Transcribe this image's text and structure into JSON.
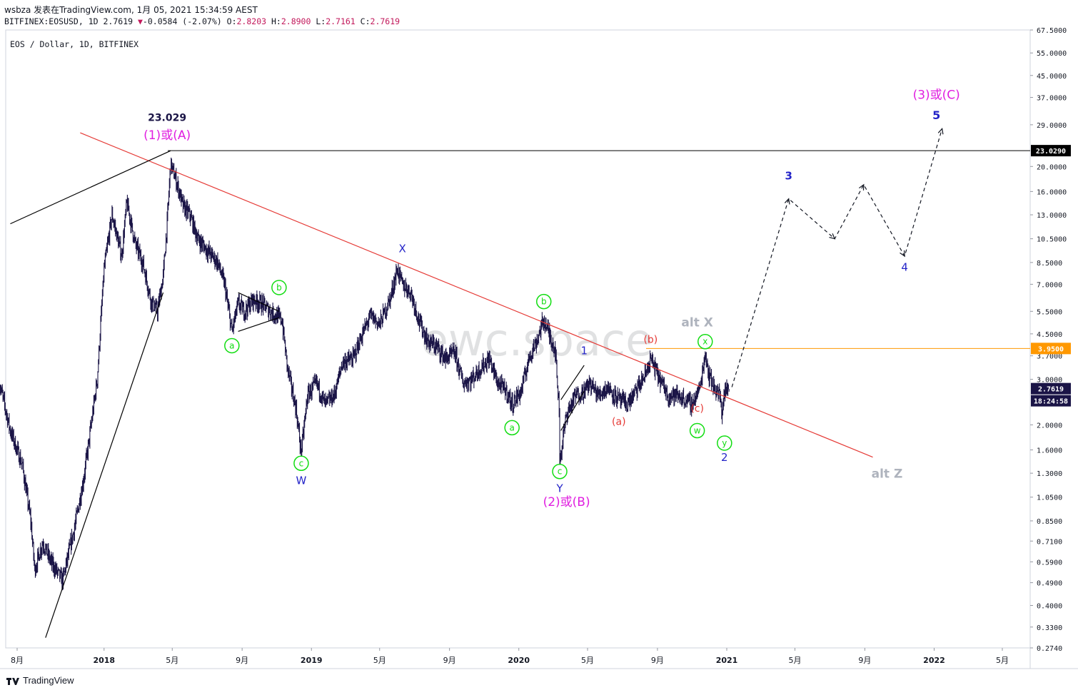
{
  "header": {
    "line1": "wsbza 发表在TradingView.com, 1月 05, 2021 15:34:59 AEST",
    "symbol": "BITFINEX:EOSUSD, 1D",
    "last": "2.7619",
    "change": "-0.0584 (-2.07%)",
    "ohlc": {
      "O": "2.8203",
      "H": "2.8900",
      "L": "2.7161",
      "C": "2.7619"
    }
  },
  "legend": "EOS / Dollar, 1D, BITFINEX",
  "watermark": "ewc.space",
  "footer": {
    "brand": "TradingView"
  },
  "colors": {
    "candles": "#1a1446",
    "trendline_red": "#e53935",
    "level_black": "#000000",
    "level_orange": "#ff9800",
    "wave_blue": "#2424c8",
    "wave_magenta": "#e01ee0",
    "wave_green": "#11dd11",
    "wave_red": "#e53935",
    "alt_gray": "#aeb3bd"
  },
  "chart_data": {
    "type": "candlestick",
    "title": "EOS / Dollar, 1D, BITFINEX",
    "y_scale": "log",
    "ylim": [
      0.274,
      67.5
    ],
    "y_ticks": [
      {
        "v": 67.5,
        "label": "67.5000"
      },
      {
        "v": 55,
        "label": "55.0000"
      },
      {
        "v": 45,
        "label": "45.0000"
      },
      {
        "v": 37,
        "label": "37.0000"
      },
      {
        "v": 29,
        "label": "29.0000"
      },
      {
        "v": 20,
        "label": "20.0000"
      },
      {
        "v": 16,
        "label": "16.0000"
      },
      {
        "v": 13,
        "label": "13.0000"
      },
      {
        "v": 10.5,
        "label": "10.5000"
      },
      {
        "v": 8.5,
        "label": "8.5000"
      },
      {
        "v": 7,
        "label": "7.0000"
      },
      {
        "v": 5.5,
        "label": "5.5000"
      },
      {
        "v": 4.5,
        "label": "4.5000"
      },
      {
        "v": 3.7,
        "label": "3.7000"
      },
      {
        "v": 3.0,
        "label": "3.0000"
      },
      {
        "v": 2,
        "label": "2.0000"
      },
      {
        "v": 1.6,
        "label": "1.6000"
      },
      {
        "v": 1.3,
        "label": "1.3000"
      },
      {
        "v": 1.05,
        "label": "1.0500"
      },
      {
        "v": 0.85,
        "label": "0.8500"
      },
      {
        "v": 0.71,
        "label": "0.7100"
      },
      {
        "v": 0.59,
        "label": "0.5900"
      },
      {
        "v": 0.49,
        "label": "0.4900"
      },
      {
        "v": 0.4,
        "label": "0.4000"
      },
      {
        "v": 0.33,
        "label": "0.3300"
      },
      {
        "v": 0.274,
        "label": "0.2740"
      }
    ],
    "x_ticks": [
      {
        "t": "2017-08-01",
        "label": "8月"
      },
      {
        "t": "2018-01-01",
        "label": "2018"
      },
      {
        "t": "2018-05-01",
        "label": "5月"
      },
      {
        "t": "2018-09-01",
        "label": "9月"
      },
      {
        "t": "2019-01-01",
        "label": "2019"
      },
      {
        "t": "2019-05-01",
        "label": "5月"
      },
      {
        "t": "2019-09-01",
        "label": "9月"
      },
      {
        "t": "2020-01-01",
        "label": "2020"
      },
      {
        "t": "2020-05-01",
        "label": "5月"
      },
      {
        "t": "2020-09-01",
        "label": "9月"
      },
      {
        "t": "2021-01-01",
        "label": "2021"
      },
      {
        "t": "2021-05-01",
        "label": "5月"
      },
      {
        "t": "2021-09-01",
        "label": "9月"
      },
      {
        "t": "2022-01-01",
        "label": "2022"
      },
      {
        "t": "2022-05-01",
        "label": "5月"
      }
    ],
    "price_path": [
      [
        "2017-07-01",
        2.9
      ],
      [
        "2017-07-20",
        1.9
      ],
      [
        "2017-08-10",
        1.4
      ],
      [
        "2017-08-25",
        0.85
      ],
      [
        "2017-09-01",
        0.55
      ],
      [
        "2017-09-15",
        0.7
      ],
      [
        "2017-10-01",
        0.58
      ],
      [
        "2017-10-20",
        0.5
      ],
      [
        "2017-11-10",
        0.8
      ],
      [
        "2017-11-25",
        1.2
      ],
      [
        "2017-12-05",
        1.7
      ],
      [
        "2017-12-20",
        3.0
      ],
      [
        "2018-01-01",
        8.0
      ],
      [
        "2018-01-15",
        13.0
      ],
      [
        "2018-02-01",
        9.0
      ],
      [
        "2018-02-10",
        14.5
      ],
      [
        "2018-02-25",
        10.0
      ],
      [
        "2018-03-10",
        8.5
      ],
      [
        "2018-03-25",
        6.0
      ],
      [
        "2018-04-05",
        5.5
      ],
      [
        "2018-04-15",
        7.5
      ],
      [
        "2018-04-22",
        12.0
      ],
      [
        "2018-04-28",
        20.5
      ],
      [
        "2018-05-10",
        17.0
      ],
      [
        "2018-05-20",
        14.0
      ],
      [
        "2018-06-01",
        13.0
      ],
      [
        "2018-06-15",
        10.5
      ],
      [
        "2018-07-01",
        9.5
      ],
      [
        "2018-07-20",
        8.5
      ],
      [
        "2018-08-01",
        7.0
      ],
      [
        "2018-08-14",
        4.6
      ],
      [
        "2018-08-25",
        5.9
      ],
      [
        "2018-09-05",
        5.5
      ],
      [
        "2018-09-20",
        6.1
      ],
      [
        "2018-10-05",
        5.9
      ],
      [
        "2018-10-25",
        5.4
      ],
      [
        "2018-11-10",
        5.1
      ],
      [
        "2018-11-20",
        3.3
      ],
      [
        "2018-12-05",
        2.3
      ],
      [
        "2018-12-14",
        1.55
      ],
      [
        "2018-12-25",
        2.6
      ],
      [
        "2019-01-10",
        2.9
      ],
      [
        "2019-01-25",
        2.4
      ],
      [
        "2019-02-10",
        2.6
      ],
      [
        "2019-02-25",
        3.5
      ],
      [
        "2019-03-15",
        3.6
      ],
      [
        "2019-04-01",
        4.5
      ],
      [
        "2019-04-15",
        5.3
      ],
      [
        "2019-05-01",
        4.9
      ],
      [
        "2019-05-20",
        6.2
      ],
      [
        "2019-06-01",
        8.0
      ],
      [
        "2019-06-10",
        7.0
      ],
      [
        "2019-06-25",
        6.5
      ],
      [
        "2019-07-10",
        5.0
      ],
      [
        "2019-07-25",
        4.2
      ],
      [
        "2019-08-10",
        4.0
      ],
      [
        "2019-08-25",
        3.6
      ],
      [
        "2019-09-10",
        3.8
      ],
      [
        "2019-09-25",
        2.9
      ],
      [
        "2019-10-10",
        3.0
      ],
      [
        "2019-10-25",
        3.3
      ],
      [
        "2019-11-10",
        3.6
      ],
      [
        "2019-11-25",
        2.9
      ],
      [
        "2019-12-10",
        2.7
      ],
      [
        "2019-12-20",
        2.4
      ],
      [
        "2020-01-05",
        2.7
      ],
      [
        "2020-01-20",
        3.7
      ],
      [
        "2020-02-01",
        4.2
      ],
      [
        "2020-02-14",
        5.1
      ],
      [
        "2020-02-25",
        4.4
      ],
      [
        "2020-03-05",
        3.9
      ],
      [
        "2020-03-12",
        2.3
      ],
      [
        "2020-03-13",
        1.45
      ],
      [
        "2020-03-25",
        2.2
      ],
      [
        "2020-04-10",
        2.6
      ],
      [
        "2020-04-25",
        2.7
      ],
      [
        "2020-05-05",
        2.9
      ],
      [
        "2020-05-20",
        2.6
      ],
      [
        "2020-06-05",
        2.8
      ],
      [
        "2020-06-25",
        2.5
      ],
      [
        "2020-07-10",
        2.4
      ],
      [
        "2020-07-25",
        2.7
      ],
      [
        "2020-08-10",
        3.1
      ],
      [
        "2020-08-20",
        3.6
      ],
      [
        "2020-09-05",
        3.0
      ],
      [
        "2020-09-20",
        2.6
      ],
      [
        "2020-10-05",
        2.6
      ],
      [
        "2020-10-20",
        2.5
      ],
      [
        "2020-11-01",
        2.4
      ],
      [
        "2020-11-15",
        2.8
      ],
      [
        "2020-11-24",
        3.8
      ],
      [
        "2020-12-01",
        3.1
      ],
      [
        "2020-12-10",
        2.8
      ],
      [
        "2020-12-20",
        2.6
      ],
      [
        "2020-12-23",
        2.2
      ],
      [
        "2020-12-28",
        2.7
      ],
      [
        "2021-01-05",
        2.76
      ]
    ],
    "last_price": 2.7619,
    "levels": [
      {
        "price": 23.029,
        "label": "23.0290",
        "color": "#000000"
      },
      {
        "price": 3.95,
        "label": "3.9500",
        "color": "#ff9800"
      }
    ],
    "price_tags": [
      {
        "price": 2.7619,
        "label": "2.7619"
      },
      {
        "label": "18:24:58"
      }
    ],
    "trendlines": [
      {
        "name": "red-resistance-line",
        "color": "#e53935",
        "points": [
          [
            "2017-11-20",
            27.0
          ],
          [
            "2021-09-15",
            1.5
          ]
        ]
      },
      {
        "name": "black-upper-channel",
        "color": "#000000",
        "points": [
          [
            "2017-07-20",
            12.0
          ],
          [
            "2018-04-28",
            23.0
          ]
        ]
      },
      {
        "name": "black-lower-channel",
        "color": "#000000",
        "points": [
          [
            "2017-09-20",
            0.3
          ],
          [
            "2018-04-15",
            6.5
          ]
        ]
      },
      {
        "name": "triangle-upper",
        "color": "#000000",
        "points": [
          [
            "2018-08-25",
            6.5
          ],
          [
            "2018-11-05",
            5.5
          ]
        ]
      },
      {
        "name": "triangle-lower",
        "color": "#000000",
        "points": [
          [
            "2018-08-25",
            4.6
          ],
          [
            "2018-11-05",
            5.2
          ]
        ]
      },
      {
        "name": "diagonal-upper",
        "color": "#000000",
        "points": [
          [
            "2020-03-15",
            2.5
          ],
          [
            "2020-04-25",
            3.4
          ]
        ]
      },
      {
        "name": "diagonal-lower",
        "color": "#000000",
        "points": [
          [
            "2020-03-15",
            1.9
          ],
          [
            "2020-04-25",
            2.7
          ]
        ]
      }
    ],
    "projection": [
      [
        "2021-01-10",
        2.8
      ],
      [
        "2021-04-20",
        15.0
      ],
      [
        "2021-07-10",
        10.5
      ],
      [
        "2021-08-30",
        17.0
      ],
      [
        "2021-11-10",
        9.0
      ],
      [
        "2022-01-15",
        28.0
      ]
    ],
    "annotations": [
      {
        "text": "23.029",
        "t": "2018-04-22",
        "price": 30.0,
        "color": "#1a1446",
        "size": 14,
        "bold": true
      },
      {
        "text": "(1)或(A)",
        "t": "2018-04-22",
        "price": 25.5,
        "color": "#e01ee0",
        "size": 17
      },
      {
        "text": "(2)或(B)",
        "t": "2020-03-25",
        "price": 0.97,
        "color": "#e01ee0",
        "size": 17
      },
      {
        "text": "(3)或(C)",
        "t": "2022-01-05",
        "price": 36.5,
        "color": "#e01ee0",
        "size": 17
      },
      {
        "text": "X",
        "t": "2019-06-10",
        "price": 9.3,
        "color": "#2424c8",
        "size": 15
      },
      {
        "text": "W",
        "t": "2018-12-14",
        "price": 1.18,
        "color": "#2424c8",
        "size": 15
      },
      {
        "text": "Y",
        "t": "2020-03-13",
        "price": 1.1,
        "color": "#2424c8",
        "size": 15
      },
      {
        "text": "1",
        "t": "2020-04-25",
        "price": 3.75,
        "color": "#2424c8",
        "size": 15
      },
      {
        "text": "2",
        "t": "2020-12-28",
        "price": 1.45,
        "color": "#2424c8",
        "size": 15
      },
      {
        "text": "3",
        "t": "2021-04-20",
        "price": 17.8,
        "color": "#2424c8",
        "size": 15,
        "bold": true
      },
      {
        "text": "4",
        "t": "2021-11-10",
        "price": 7.9,
        "color": "#2424c8",
        "size": 15
      },
      {
        "text": "5",
        "t": "2022-01-05",
        "price": 30.5,
        "color": "#2424c8",
        "size": 16,
        "bold": true
      },
      {
        "text": "(a)",
        "t": "2020-06-25",
        "price": 2.0,
        "color": "#e53935",
        "size": 14
      },
      {
        "text": "(b)",
        "t": "2020-08-20",
        "price": 4.15,
        "color": "#e53935",
        "size": 14
      },
      {
        "text": "(c)",
        "t": "2020-11-10",
        "price": 2.25,
        "color": "#e53935",
        "size": 14
      },
      {
        "text": "alt X",
        "t": "2020-11-10",
        "price": 4.8,
        "color": "#aeb3bd",
        "size": 17,
        "bold": true
      },
      {
        "text": "alt Z",
        "t": "2021-10-10",
        "price": 1.25,
        "color": "#aeb3bd",
        "size": 17,
        "bold": true
      }
    ],
    "circled": [
      {
        "text": "a",
        "t": "2018-08-14",
        "price": 4.05
      },
      {
        "text": "b",
        "t": "2018-11-05",
        "price": 6.8
      },
      {
        "text": "c",
        "t": "2018-12-14",
        "price": 1.42
      },
      {
        "text": "a",
        "t": "2019-12-20",
        "price": 1.95
      },
      {
        "text": "b",
        "t": "2020-02-14",
        "price": 6.0
      },
      {
        "text": "c",
        "t": "2020-03-13",
        "price": 1.32
      },
      {
        "text": "x",
        "t": "2020-11-24",
        "price": 4.2
      },
      {
        "text": "w",
        "t": "2020-11-10",
        "price": 1.9
      },
      {
        "text": "y",
        "t": "2020-12-28",
        "price": 1.7
      }
    ]
  }
}
